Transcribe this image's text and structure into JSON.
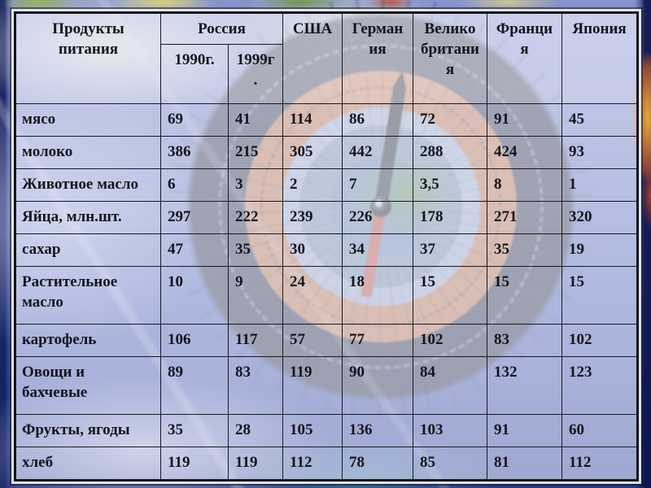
{
  "chart_data": {
    "type": "table",
    "description": "Food production per capita by country, slide table over compass background",
    "header": {
      "product": "Продукты\nпитания",
      "russia": "Россия",
      "russia_years": [
        "1990г.",
        "1999г\n."
      ],
      "countries": [
        "США",
        "Герман\nия",
        "Велико\nбритани\nя",
        "Франци\nя",
        "Япония"
      ]
    },
    "rows": [
      {
        "product": "мясо",
        "values": [
          "69",
          "41",
          "114",
          "86",
          "72",
          "91",
          "45"
        ]
      },
      {
        "product": "молоко",
        "values": [
          "386",
          "215",
          "305",
          "442",
          "288",
          "424",
          "93"
        ]
      },
      {
        "product": "Животное масло",
        "values": [
          "6",
          "3",
          "2",
          "7",
          "3,5",
          "8",
          "1"
        ]
      },
      {
        "product": "Яйца, млн.шт.",
        "values": [
          "297",
          "222",
          "239",
          "226",
          "178",
          "271",
          "320"
        ]
      },
      {
        "product": "сахар",
        "values": [
          "47",
          "35",
          "30",
          "34",
          "37",
          "35",
          "19"
        ]
      },
      {
        "product": "Растительное\nмасло",
        "values": [
          "10",
          "9",
          "24",
          "18",
          "15",
          "15",
          "15"
        ]
      },
      {
        "product": "картофель",
        "values": [
          "106",
          "117",
          "57",
          "77",
          "102",
          "83",
          "102"
        ]
      },
      {
        "product": "Овощи и\nбахчевые",
        "values": [
          "89",
          "83",
          "119",
          "90",
          "84",
          "132",
          "123"
        ]
      },
      {
        "product": "Фрукты, ягоды",
        "values": [
          "35",
          "28",
          "105",
          "136",
          "103",
          "91",
          "60"
        ]
      },
      {
        "product": "хлеб",
        "values": [
          "119",
          "119",
          "112",
          "78",
          "85",
          "81",
          "112"
        ]
      }
    ]
  },
  "colors": {
    "table_cell_overlay": "rgba(233,236,248,0.62)",
    "table_border": "#1A1A22",
    "table_text": "#14141C",
    "background_blue": "#5D70BB",
    "background_dark_blue": "#24378F",
    "compass_orange": "#CD783E",
    "needle_red": "#C24A36"
  }
}
